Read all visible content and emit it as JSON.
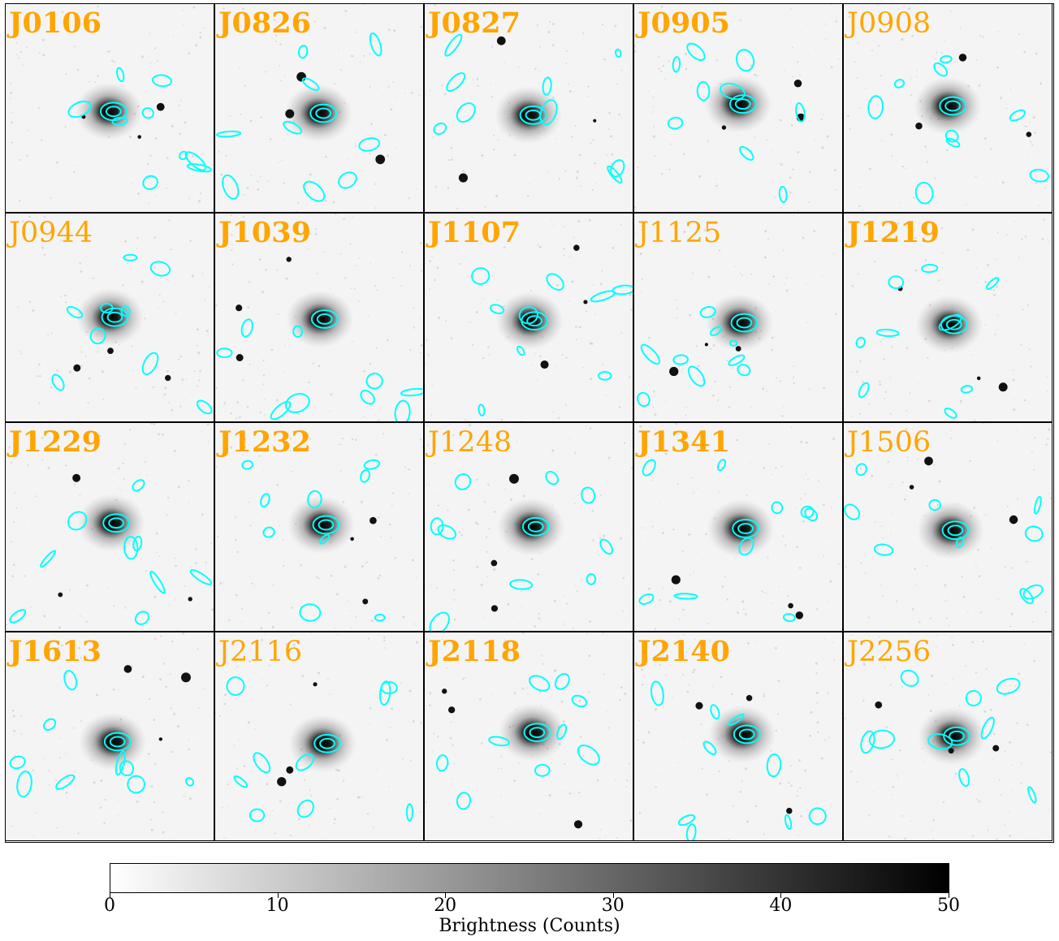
{
  "panels": [
    {
      "label": "J0106",
      "bold": true
    },
    {
      "label": "J0826",
      "bold": true
    },
    {
      "label": "J0827",
      "bold": true
    },
    {
      "label": "J0905",
      "bold": true
    },
    {
      "label": "J0908",
      "bold": false
    },
    {
      "label": "J0944",
      "bold": false
    },
    {
      "label": "J1039",
      "bold": true
    },
    {
      "label": "J1107",
      "bold": true
    },
    {
      "label": "J1125",
      "bold": false
    },
    {
      "label": "J1219",
      "bold": true
    },
    {
      "label": "J1229",
      "bold": true
    },
    {
      "label": "J1232",
      "bold": true
    },
    {
      "label": "J1248",
      "bold": false
    },
    {
      "label": "J1341",
      "bold": true
    },
    {
      "label": "J1506",
      "bold": false
    },
    {
      "label": "J1613",
      "bold": true
    },
    {
      "label": "J2116",
      "bold": false
    },
    {
      "label": "J2118",
      "bold": true
    },
    {
      "label": "J2140",
      "bold": true
    },
    {
      "label": "J2256",
      "bold": false
    }
  ],
  "colorbar": {
    "label": "Brightness (Counts)",
    "min": 0,
    "max": 50,
    "ticks": [
      "0",
      "10",
      "20",
      "30",
      "40",
      "50"
    ],
    "colormap": "gray_r"
  },
  "colors": {
    "label_color": "#FFA500",
    "contour_color": "#00FFFF",
    "background": "#FFFFFF"
  }
}
